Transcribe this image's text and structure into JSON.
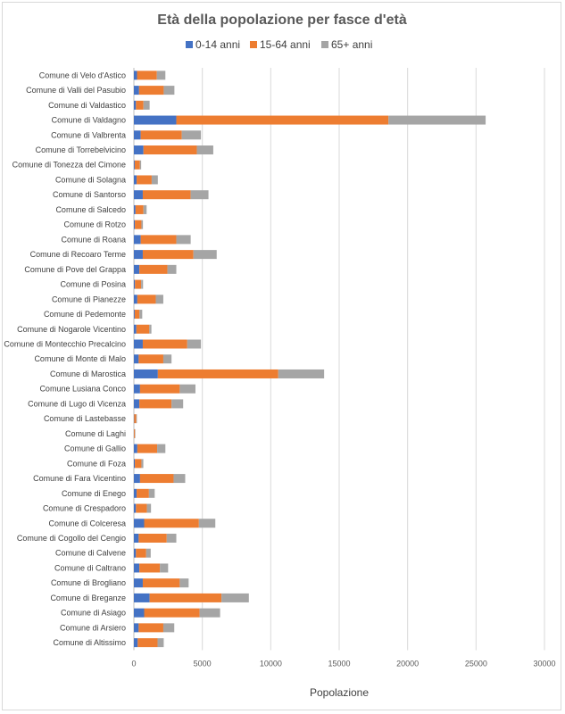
{
  "chart_data": {
    "type": "bar",
    "orientation": "horizontal",
    "stacked": true,
    "title": "Età della popolazione per fasce d'età",
    "xlabel": "Popolazione",
    "ylabel": "",
    "xlim": [
      0,
      30000
    ],
    "xticks": [
      0,
      5000,
      10000,
      15000,
      20000,
      25000,
      30000
    ],
    "grid": "vertical",
    "legend_position": "top",
    "categories": [
      "Comune di  Velo d'Astico",
      "Comune di  Valli del Pasubio",
      "Comune di  Valdastico",
      "Comune di  Valdagno",
      "Comune di  Valbrenta",
      "Comune di  Torrebelvicino",
      "Comune di  Tonezza del Cimone",
      "Comune di  Solagna",
      "Comune di  Santorso",
      "Comune di  Salcedo",
      "Comune di  Rotzo",
      "Comune di  Roana",
      "Comune di  Recoaro Terme",
      "Comune di  Pove del Grappa",
      "Comune di  Posina",
      "Comune di  Pianezze",
      "Comune di  Pedemonte",
      "Comune di  Nogarole Vicentino",
      "Comune di  Montecchio Precalcino",
      "Comune di  Monte di Malo",
      "Comune di  Marostica",
      "Comune Lusiana Conco",
      "Comune di  Lugo di Vicenza",
      "Comune di  Lastebasse",
      "Comune di  Laghi",
      "Comune di  Gallio",
      "Comune di  Foza",
      "Comune di  Fara Vicentino",
      "Comune di  Enego",
      "Comune di  Crespadoro",
      "Comune di  Colceresa",
      "Comune di  Cogollo del Cengio",
      "Comune di  Calvene",
      "Comune di  Caltrano",
      "Comune di  Brogliano",
      "Comune di  Breganze",
      "Comune di  Asiago",
      "Comune di  Arsiero",
      "Comune di  Altissimo"
    ],
    "series": [
      {
        "name": "0-14 anni",
        "color": "#4472c4",
        "values": [
          230,
          380,
          150,
          3100,
          500,
          700,
          60,
          200,
          650,
          120,
          70,
          500,
          650,
          400,
          80,
          250,
          60,
          180,
          650,
          350,
          1750,
          450,
          400,
          20,
          10,
          250,
          70,
          450,
          200,
          150,
          750,
          350,
          150,
          400,
          650,
          1150,
          750,
          350,
          280
        ]
      },
      {
        "name": "15-64 anni",
        "color": "#ed7d31",
        "values": [
          1450,
          1800,
          550,
          15500,
          3000,
          3900,
          380,
          1100,
          3500,
          580,
          480,
          2600,
          3700,
          2050,
          450,
          1350,
          350,
          950,
          3250,
          1800,
          8800,
          2900,
          2350,
          150,
          70,
          1450,
          480,
          2450,
          900,
          800,
          4000,
          2050,
          750,
          1500,
          2700,
          5250,
          4050,
          1800,
          1450
        ]
      },
      {
        "name": "65+ anni",
        "color": "#a5a5a5",
        "values": [
          620,
          780,
          450,
          7100,
          1400,
          1200,
          90,
          450,
          1300,
          230,
          110,
          1050,
          1700,
          650,
          140,
          550,
          200,
          150,
          1000,
          600,
          3350,
          1150,
          850,
          50,
          30,
          600,
          140,
          850,
          420,
          300,
          1200,
          700,
          330,
          600,
          650,
          2000,
          1500,
          800,
          450
        ]
      }
    ]
  }
}
